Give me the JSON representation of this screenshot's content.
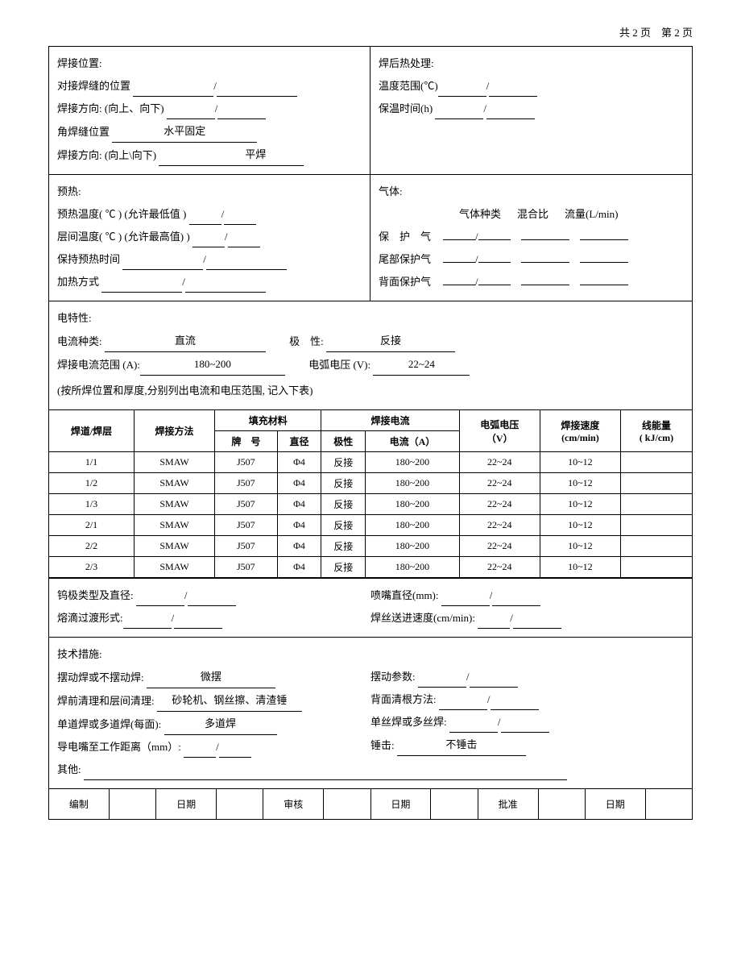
{
  "page_info": "共 2 页　第 2 页",
  "sec1": {
    "left": {
      "title": "焊接位置:",
      "butt_label": "对接焊缝的位置",
      "dir1_label": "焊接方向: (向上、向下)",
      "fillet_label": "角焊缝位置",
      "fillet_val": "水平固定",
      "dir2_label": "焊接方向: (向上\\向下)",
      "dir2_val": "平焊"
    },
    "right": {
      "title": "焊后热处理:",
      "temp_label": "温度范围(℃)",
      "hold_label": "保温时间(h)"
    }
  },
  "sec2": {
    "left": {
      "title": "预热:",
      "pre_temp": "预热温度(  ℃ ) (允许最低值 )",
      "inter_temp": "层间温度(  ℃ ) (允许最高值) )",
      "hold_time": "保持预热时间",
      "heat_method": "加热方式"
    },
    "right": {
      "title": "气体:",
      "h1": "气体种类",
      "h2": "混合比",
      "h3": "流量(L/min)",
      "shield": "保　护　气",
      "trail": "尾部保护气",
      "back": "背面保护气"
    }
  },
  "sec3": {
    "title": "电特性:",
    "curr_type_label": "电流种类:",
    "curr_type_val": "直流",
    "polarity_label": "极　性:",
    "polarity_val": "反接",
    "curr_range_label": "焊接电流范围 (A):",
    "curr_range_val": "180~200",
    "volt_label": "电弧电压 (V):",
    "volt_val": "22~24",
    "note": "(按所焊位置和厚度,分别列出电流和电压范围, 记入下表)"
  },
  "table": {
    "headers": {
      "c1": "焊道/焊层",
      "c2": "焊接方法",
      "c3": "填充材料",
      "c3a": "牌　号",
      "c3b": "直径",
      "c4": "焊接电流",
      "c4a": "极性",
      "c4b": "电流（A）",
      "c5": "电弧电压\n（V）",
      "c6": "焊接速度\n(cm/min)",
      "c7": "线能量\n( kJ/cm)"
    },
    "rows": [
      {
        "pass": "1/1",
        "method": "SMAW",
        "grade": "J507",
        "dia": "Φ4",
        "pol": "反接",
        "amp": "180~200",
        "volt": "22~24",
        "speed": "10~12",
        "energy": ""
      },
      {
        "pass": "1/2",
        "method": "SMAW",
        "grade": "J507",
        "dia": "Φ4",
        "pol": "反接",
        "amp": "180~200",
        "volt": "22~24",
        "speed": "10~12",
        "energy": ""
      },
      {
        "pass": "1/3",
        "method": "SMAW",
        "grade": "J507",
        "dia": "Φ4",
        "pol": "反接",
        "amp": "180~200",
        "volt": "22~24",
        "speed": "10~12",
        "energy": ""
      },
      {
        "pass": "2/1",
        "method": "SMAW",
        "grade": "J507",
        "dia": "Φ4",
        "pol": "反接",
        "amp": "180~200",
        "volt": "22~24",
        "speed": "10~12",
        "energy": ""
      },
      {
        "pass": "2/2",
        "method": "SMAW",
        "grade": "J507",
        "dia": "Φ4",
        "pol": "反接",
        "amp": "180~200",
        "volt": "22~24",
        "speed": "10~12",
        "energy": ""
      },
      {
        "pass": "2/3",
        "method": "SMAW",
        "grade": "J507",
        "dia": "Φ4",
        "pol": "反接",
        "amp": "180~200",
        "volt": "22~24",
        "speed": "10~12",
        "energy": ""
      }
    ]
  },
  "sec4": {
    "tungsten": "钨极类型及直径:",
    "nozzle": "喷嘴直径(mm):",
    "transfer": "熔滴过渡形式:",
    "wirefeed": "焊丝送进速度(cm/min):"
  },
  "sec5": {
    "title": "技术措施:",
    "weave_label": "摆动焊或不摆动焊:",
    "weave_val": "微摆",
    "weave_param": "摆动参数:",
    "clean_label": "焊前清理和层间清理:",
    "clean_val": "砂轮机、钢丝擦、清渣锤",
    "back_gouge": "背面清根方法:",
    "pass_label": "单道焊或多道焊(每面):",
    "pass_val": "多道焊",
    "wire_label": "单丝焊或多丝焊:",
    "tip_dist": "导电嘴至工作距离（mm）:",
    "peen_label": "锤击:",
    "peen_val": "不锤击",
    "other": "其他:"
  },
  "sig": {
    "prepared": "编制",
    "date": "日期",
    "reviewed": "审核",
    "approved": "批准"
  }
}
